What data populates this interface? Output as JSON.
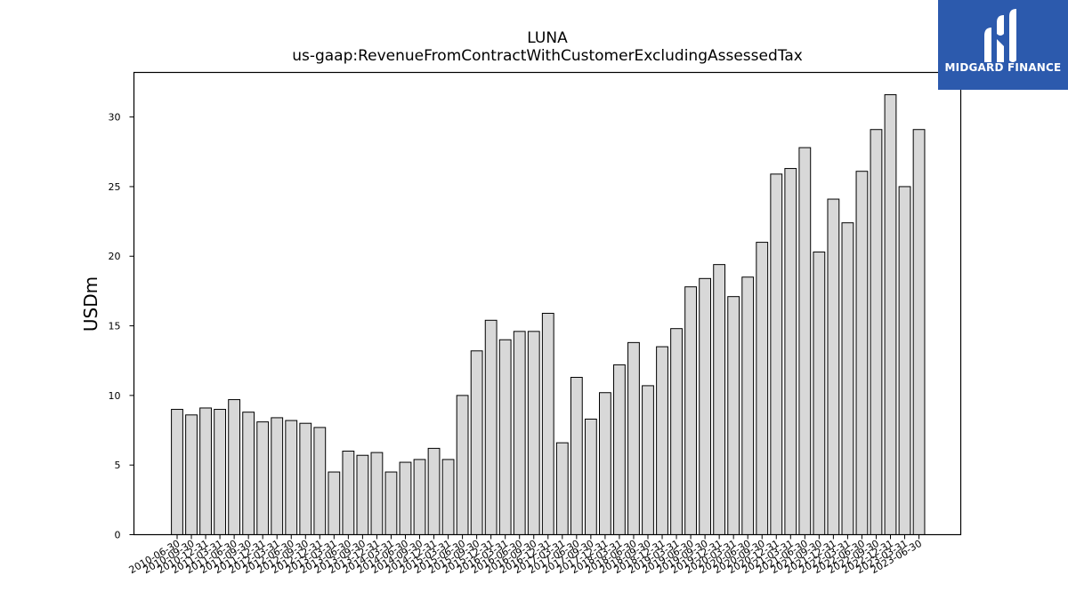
{
  "chart_data": {
    "type": "bar",
    "title": "LUNA",
    "subtitle": "us-gaap:RevenueFromContractWithCustomerExcludingAssessedTax",
    "xlabel": "",
    "ylabel": "USDm",
    "ylim": [
      0,
      33.2
    ],
    "yticks": [
      0,
      5,
      10,
      15,
      20,
      25,
      30
    ],
    "grid": false,
    "categories": [
      "2010-06-30",
      "2010-09-30",
      "2010-12-31",
      "2011-03-31",
      "2011-06-30",
      "2011-09-30",
      "2011-12-31",
      "2012-03-31",
      "2012-06-30",
      "2012-09-30",
      "2012-12-31",
      "2013-03-31",
      "2013-06-30",
      "2013-09-30",
      "2013-12-31",
      "2014-03-31",
      "2014-06-30",
      "2014-09-30",
      "2014-12-31",
      "2015-03-31",
      "2015-06-30",
      "2015-09-30",
      "2015-12-31",
      "2016-03-31",
      "2016-06-30",
      "2016-09-30",
      "2016-12-31",
      "2017-03-31",
      "2017-06-30",
      "2017-09-30",
      "2017-12-31",
      "2018-03-31",
      "2018-06-30",
      "2018-09-30",
      "2018-12-31",
      "2019-03-31",
      "2019-06-30",
      "2019-09-30",
      "2019-12-31",
      "2020-03-31",
      "2020-06-30",
      "2020-09-30",
      "2020-12-31",
      "2021-03-31",
      "2021-06-30",
      "2021-09-30",
      "2021-12-31",
      "2022-03-31",
      "2022-06-30",
      "2022-09-30",
      "2022-12-31",
      "2023-03-31",
      "2023-06-30"
    ],
    "values": [
      9.0,
      8.6,
      9.1,
      9.0,
      9.7,
      8.8,
      8.1,
      8.4,
      8.2,
      8.0,
      7.7,
      4.5,
      6.0,
      5.7,
      5.9,
      4.5,
      5.2,
      5.4,
      6.2,
      5.4,
      10.0,
      13.2,
      15.4,
      14.0,
      14.6,
      14.6,
      15.9,
      6.6,
      11.3,
      8.3,
      10.2,
      12.2,
      13.8,
      10.7,
      13.5,
      14.8,
      17.8,
      18.4,
      19.4,
      17.1,
      18.5,
      21.0,
      25.9,
      26.3,
      27.8,
      20.3,
      24.1,
      22.4,
      26.1,
      29.1,
      31.6,
      25.0,
      29.1
    ],
    "colors": {
      "bar_fill": "#d8d8d8",
      "bar_edge": "#000000"
    }
  },
  "logo": {
    "text": "MIDGARD FINANCE",
    "icon": "midgard-logo-icon",
    "bg_color": "#2c5aad"
  }
}
